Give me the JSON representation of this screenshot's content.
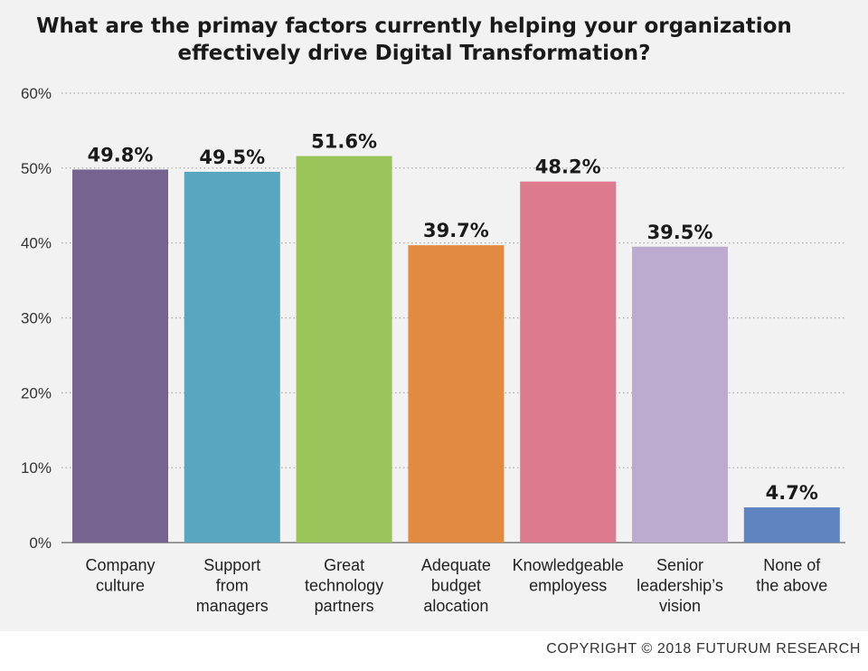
{
  "title": {
    "line1": "What are the primay factors currently helping your organization",
    "line2": "effectively drive Digital Transformation?"
  },
  "copyright": "COPYRIGHT © 2018 FUTURUM RESEARCH",
  "chart_data": {
    "type": "bar",
    "title": "What are the primay factors currently helping your organization effectively drive Digital Transformation?",
    "categories": [
      [
        "Company",
        "culture"
      ],
      [
        "Support",
        "from",
        "managers"
      ],
      [
        "Great",
        "technology",
        "partners"
      ],
      [
        "Adequate",
        "budget",
        "alocation"
      ],
      [
        "Knowledgeable",
        "employess"
      ],
      [
        "Senior",
        "leadership’s",
        "vision"
      ],
      [
        "None of",
        "the above"
      ]
    ],
    "values": [
      49.8,
      49.5,
      51.6,
      39.7,
      48.2,
      39.5,
      4.7
    ],
    "value_labels": [
      "49.8%",
      "49.5%",
      "51.6%",
      "39.7%",
      "48.2%",
      "39.5%",
      "4.7%"
    ],
    "colors": [
      "#75648f",
      "#58a6c0",
      "#9bc45a",
      "#e38a42",
      "#dd7a8e",
      "#bdabcf",
      "#5f84c0"
    ],
    "yticks": [
      "0%",
      "10%",
      "20%",
      "30%",
      "40%",
      "50%",
      "60%"
    ],
    "ylim": [
      0,
      60
    ],
    "grid": true,
    "xlabel": "",
    "ylabel": ""
  }
}
